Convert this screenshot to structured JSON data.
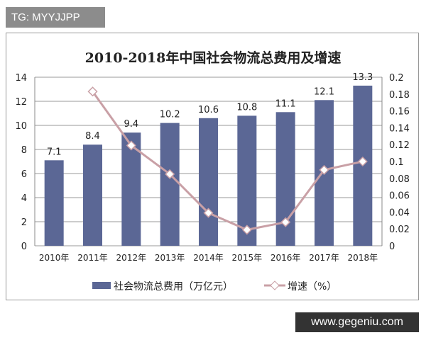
{
  "watermark": "TG: MYYJJPP",
  "site": "www.gegeniu.com",
  "chart_data": {
    "type": "bar+line",
    "title": "2010-2018年中国社会物流总费用及增速",
    "categories": [
      "2010年",
      "2011年",
      "2012年",
      "2013年",
      "2014年",
      "2015年",
      "2016年",
      "2017年",
      "2018年"
    ],
    "series": [
      {
        "name": "社会物流总费用（万亿元）",
        "type": "bar",
        "axis": "left",
        "color": "#5b6795",
        "values": [
          7.1,
          8.4,
          9.4,
          10.2,
          10.6,
          10.8,
          11.1,
          12.1,
          13.3
        ],
        "labels": [
          "7.1",
          "8.4",
          "9.4",
          "10.2",
          "10.6",
          "10.8",
          "11.1",
          "12.1",
          "13.3"
        ]
      },
      {
        "name": "增速（%）",
        "type": "line",
        "axis": "right",
        "color": "#c9a0a6",
        "marker": "diamond",
        "values": [
          null,
          0.183,
          0.119,
          0.085,
          0.039,
          0.019,
          0.028,
          0.09,
          0.1
        ]
      }
    ],
    "y_left": {
      "range": [
        0,
        14
      ],
      "ticks": [
        "0",
        "2",
        "4",
        "6",
        "8",
        "10",
        "12",
        "14"
      ]
    },
    "y_right": {
      "range": [
        0,
        0.2
      ],
      "ticks": [
        "0",
        "0.02",
        "0.04",
        "0.06",
        "0.08",
        "0.1",
        "0.12",
        "0.14",
        "0.16",
        "0.18",
        "0.2"
      ]
    },
    "grid": true,
    "legend": "bottom"
  }
}
